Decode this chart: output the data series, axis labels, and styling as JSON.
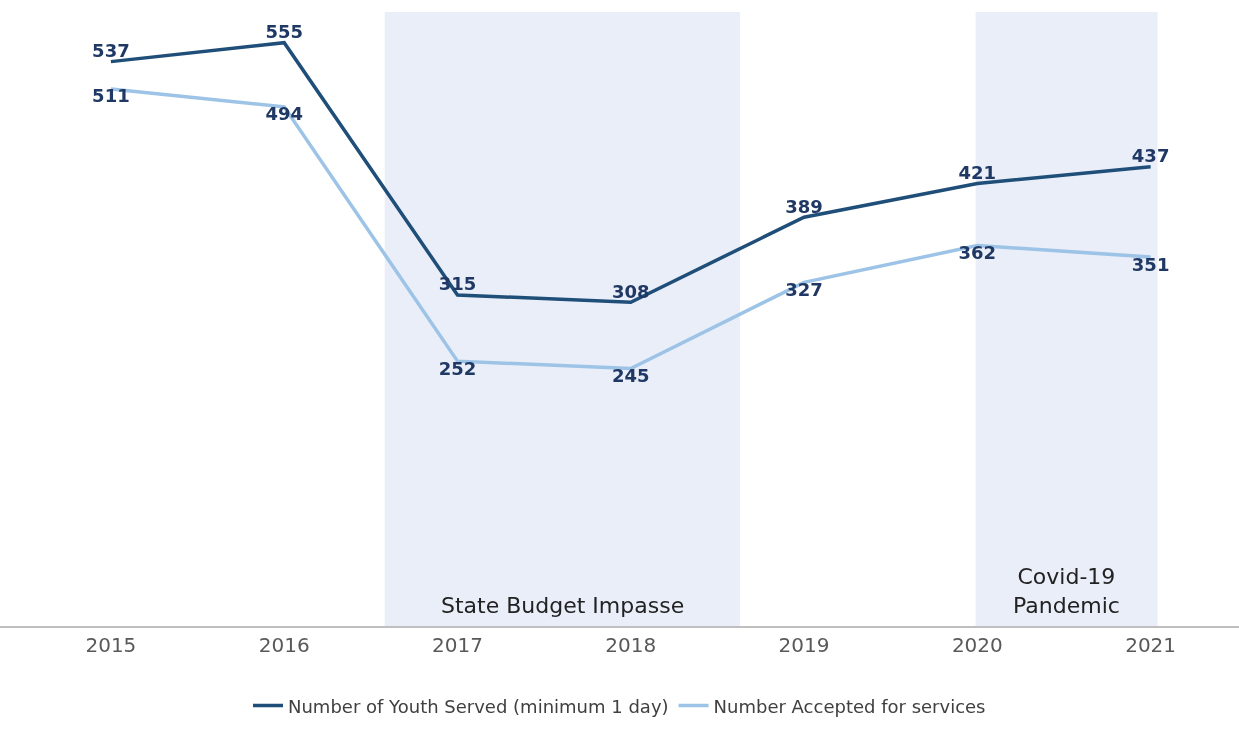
{
  "chart_data": {
    "type": "line",
    "x": [
      2015,
      2016,
      2017,
      2018,
      2019,
      2020,
      2021
    ],
    "series": [
      {
        "name": "Number of Youth Served (minimum 1 day)",
        "color": "#1f4e79",
        "values": [
          537,
          555,
          315,
          308,
          389,
          421,
          437
        ]
      },
      {
        "name": "Number Accepted for services",
        "color": "#9dc3e6",
        "values": [
          511,
          494,
          252,
          245,
          327,
          362,
          351
        ]
      }
    ],
    "xlim": [
      2014.36,
      2021.51
    ],
    "xticks": [
      2015,
      2016,
      2017,
      2018,
      2019,
      2020,
      2021
    ],
    "tick_labels": "x",
    "grid": false,
    "legend": "bottom",
    "marker": "none",
    "line_style": "solid",
    "data_labels": true,
    "bands": [
      {
        "axis": "x",
        "from": 2016.58,
        "to": 2018.63,
        "label": "State Budget Impasse",
        "color": "#e9eef8"
      },
      {
        "axis": "x",
        "from": 2019.99,
        "to": 2021.04,
        "label": "Covid-19\nPandemic",
        "color": "#e9eef8"
      }
    ]
  }
}
